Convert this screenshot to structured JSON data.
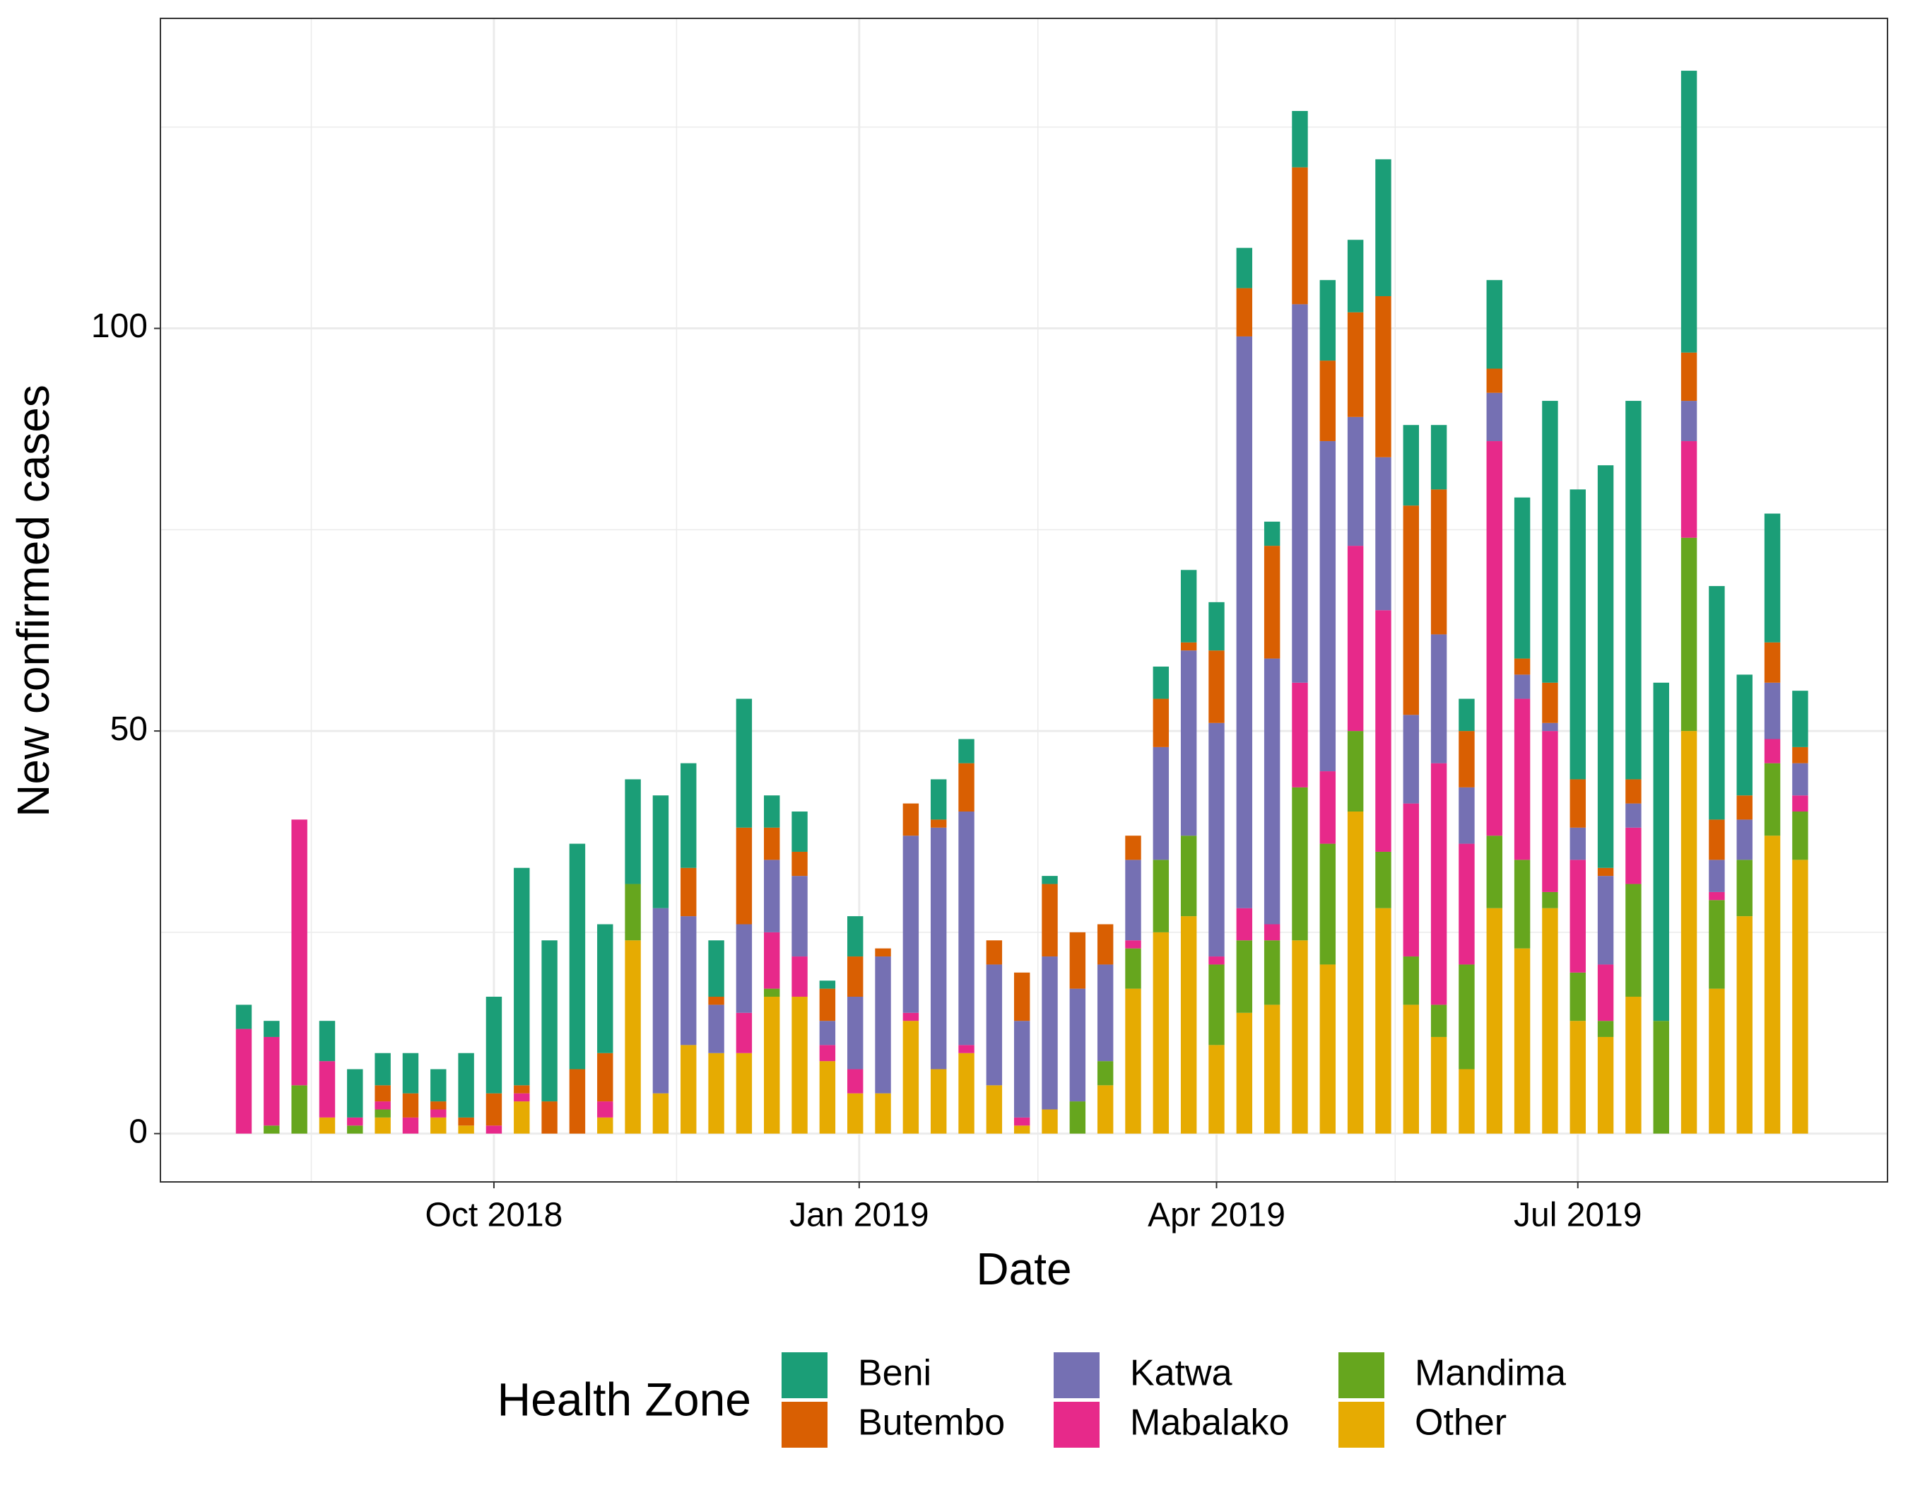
{
  "chart_data": {
    "type": "stacked_bar",
    "x_label": "Date",
    "y_label": "New confirmed cases",
    "legend_title": "Health Zone",
    "legend_position": "bottom",
    "x": [
      "2018-07-30",
      "2018-08-06",
      "2018-08-13",
      "2018-08-20",
      "2018-08-27",
      "2018-09-03",
      "2018-09-10",
      "2018-09-17",
      "2018-09-24",
      "2018-10-01",
      "2018-10-08",
      "2018-10-15",
      "2018-10-22",
      "2018-10-29",
      "2018-11-05",
      "2018-11-12",
      "2018-11-19",
      "2018-11-26",
      "2018-12-03",
      "2018-12-10",
      "2018-12-17",
      "2018-12-24",
      "2018-12-31",
      "2019-01-07",
      "2019-01-14",
      "2019-01-21",
      "2019-01-28",
      "2019-02-04",
      "2019-02-11",
      "2019-02-18",
      "2019-02-25",
      "2019-03-04",
      "2019-03-11",
      "2019-03-18",
      "2019-03-25",
      "2019-04-01",
      "2019-04-08",
      "2019-04-15",
      "2019-04-22",
      "2019-04-29",
      "2019-05-06",
      "2019-05-13",
      "2019-05-20",
      "2019-05-27",
      "2019-06-03",
      "2019-06-10",
      "2019-06-17",
      "2019-06-24",
      "2019-07-01",
      "2019-07-08",
      "2019-07-15",
      "2019-07-22",
      "2019-07-29",
      "2019-08-05",
      "2019-08-12",
      "2019-08-19",
      "2019-08-26"
    ],
    "series": [
      {
        "name": "Beni",
        "color": "#1b9e77",
        "values": [
          3,
          2,
          0,
          5,
          6,
          4,
          5,
          4,
          8,
          12,
          27,
          20,
          28,
          16,
          13,
          14,
          13,
          7,
          16,
          4,
          5,
          1,
          5,
          0,
          0,
          5,
          3,
          0,
          0,
          1,
          0,
          0,
          0,
          4,
          9,
          6,
          5,
          3,
          7,
          10,
          9,
          17,
          10,
          8,
          4,
          11,
          20,
          35,
          36,
          50,
          47,
          42,
          35,
          29,
          15,
          16,
          7
        ]
      },
      {
        "name": "Butembo",
        "color": "#d95f02",
        "values": [
          0,
          0,
          0,
          0,
          0,
          2,
          3,
          1,
          1,
          4,
          1,
          4,
          8,
          6,
          0,
          0,
          6,
          1,
          12,
          4,
          3,
          4,
          5,
          1,
          4,
          1,
          6,
          3,
          6,
          9,
          7,
          5,
          3,
          6,
          1,
          9,
          6,
          14,
          17,
          10,
          13,
          20,
          26,
          18,
          7,
          3,
          2,
          5,
          6,
          1,
          3,
          0,
          6,
          5,
          3,
          5,
          2
        ]
      },
      {
        "name": "Katwa",
        "color": "#7570b3",
        "values": [
          0,
          0,
          0,
          0,
          0,
          0,
          0,
          0,
          0,
          0,
          0,
          0,
          0,
          0,
          0,
          23,
          16,
          6,
          11,
          9,
          10,
          3,
          9,
          17,
          22,
          30,
          29,
          15,
          12,
          19,
          14,
          12,
          10,
          14,
          23,
          29,
          71,
          33,
          47,
          41,
          16,
          19,
          11,
          16,
          7,
          6,
          3,
          1,
          4,
          11,
          3,
          0,
          5,
          4,
          5,
          7,
          4
        ]
      },
      {
        "name": "Mabalako",
        "color": "#e7298a",
        "values": [
          13,
          11,
          33,
          7,
          1,
          1,
          2,
          1,
          0,
          1,
          1,
          0,
          0,
          2,
          0,
          0,
          0,
          0,
          5,
          7,
          5,
          2,
          3,
          0,
          1,
          0,
          1,
          0,
          1,
          0,
          0,
          0,
          1,
          0,
          0,
          1,
          4,
          2,
          13,
          9,
          23,
          30,
          19,
          30,
          15,
          49,
          20,
          20,
          14,
          7,
          7,
          0,
          12,
          1,
          0,
          3,
          2
        ]
      },
      {
        "name": "Mandima",
        "color": "#66a61e",
        "values": [
          0,
          1,
          6,
          0,
          1,
          1,
          0,
          0,
          0,
          0,
          0,
          0,
          0,
          0,
          7,
          0,
          0,
          0,
          0,
          1,
          0,
          0,
          0,
          0,
          0,
          0,
          0,
          0,
          0,
          0,
          4,
          3,
          5,
          9,
          10,
          10,
          9,
          8,
          19,
          15,
          10,
          7,
          6,
          4,
          13,
          9,
          11,
          2,
          6,
          2,
          14,
          14,
          24,
          11,
          7,
          9,
          6
        ]
      },
      {
        "name": "Other",
        "color": "#e6ab02",
        "values": [
          0,
          0,
          0,
          2,
          0,
          2,
          0,
          2,
          1,
          0,
          4,
          0,
          0,
          2,
          24,
          5,
          11,
          10,
          10,
          17,
          17,
          9,
          5,
          5,
          14,
          8,
          10,
          6,
          1,
          3,
          0,
          6,
          18,
          25,
          27,
          11,
          15,
          16,
          24,
          21,
          40,
          28,
          16,
          12,
          8,
          28,
          23,
          28,
          14,
          12,
          17,
          0,
          50,
          18,
          27,
          37,
          34
        ]
      }
    ],
    "xlim": [
      "2018-07-09",
      "2019-09-17"
    ],
    "xticks": [
      {
        "value": "2018-10-01",
        "label": "Oct 2018"
      },
      {
        "value": "2019-01-01",
        "label": "Jan 2019"
      },
      {
        "value": "2019-04-01",
        "label": "Apr 2019"
      },
      {
        "value": "2019-07-01",
        "label": "Jul 2019"
      }
    ],
    "x_minor_ticks": [
      "2018-08-16",
      "2018-11-16",
      "2019-02-15",
      "2019-05-16"
    ],
    "ylim": [
      -6,
      138.5
    ],
    "yticks": [
      0,
      50,
      100
    ],
    "y_minor_ticks": [
      25,
      75,
      125
    ],
    "grid": true
  }
}
